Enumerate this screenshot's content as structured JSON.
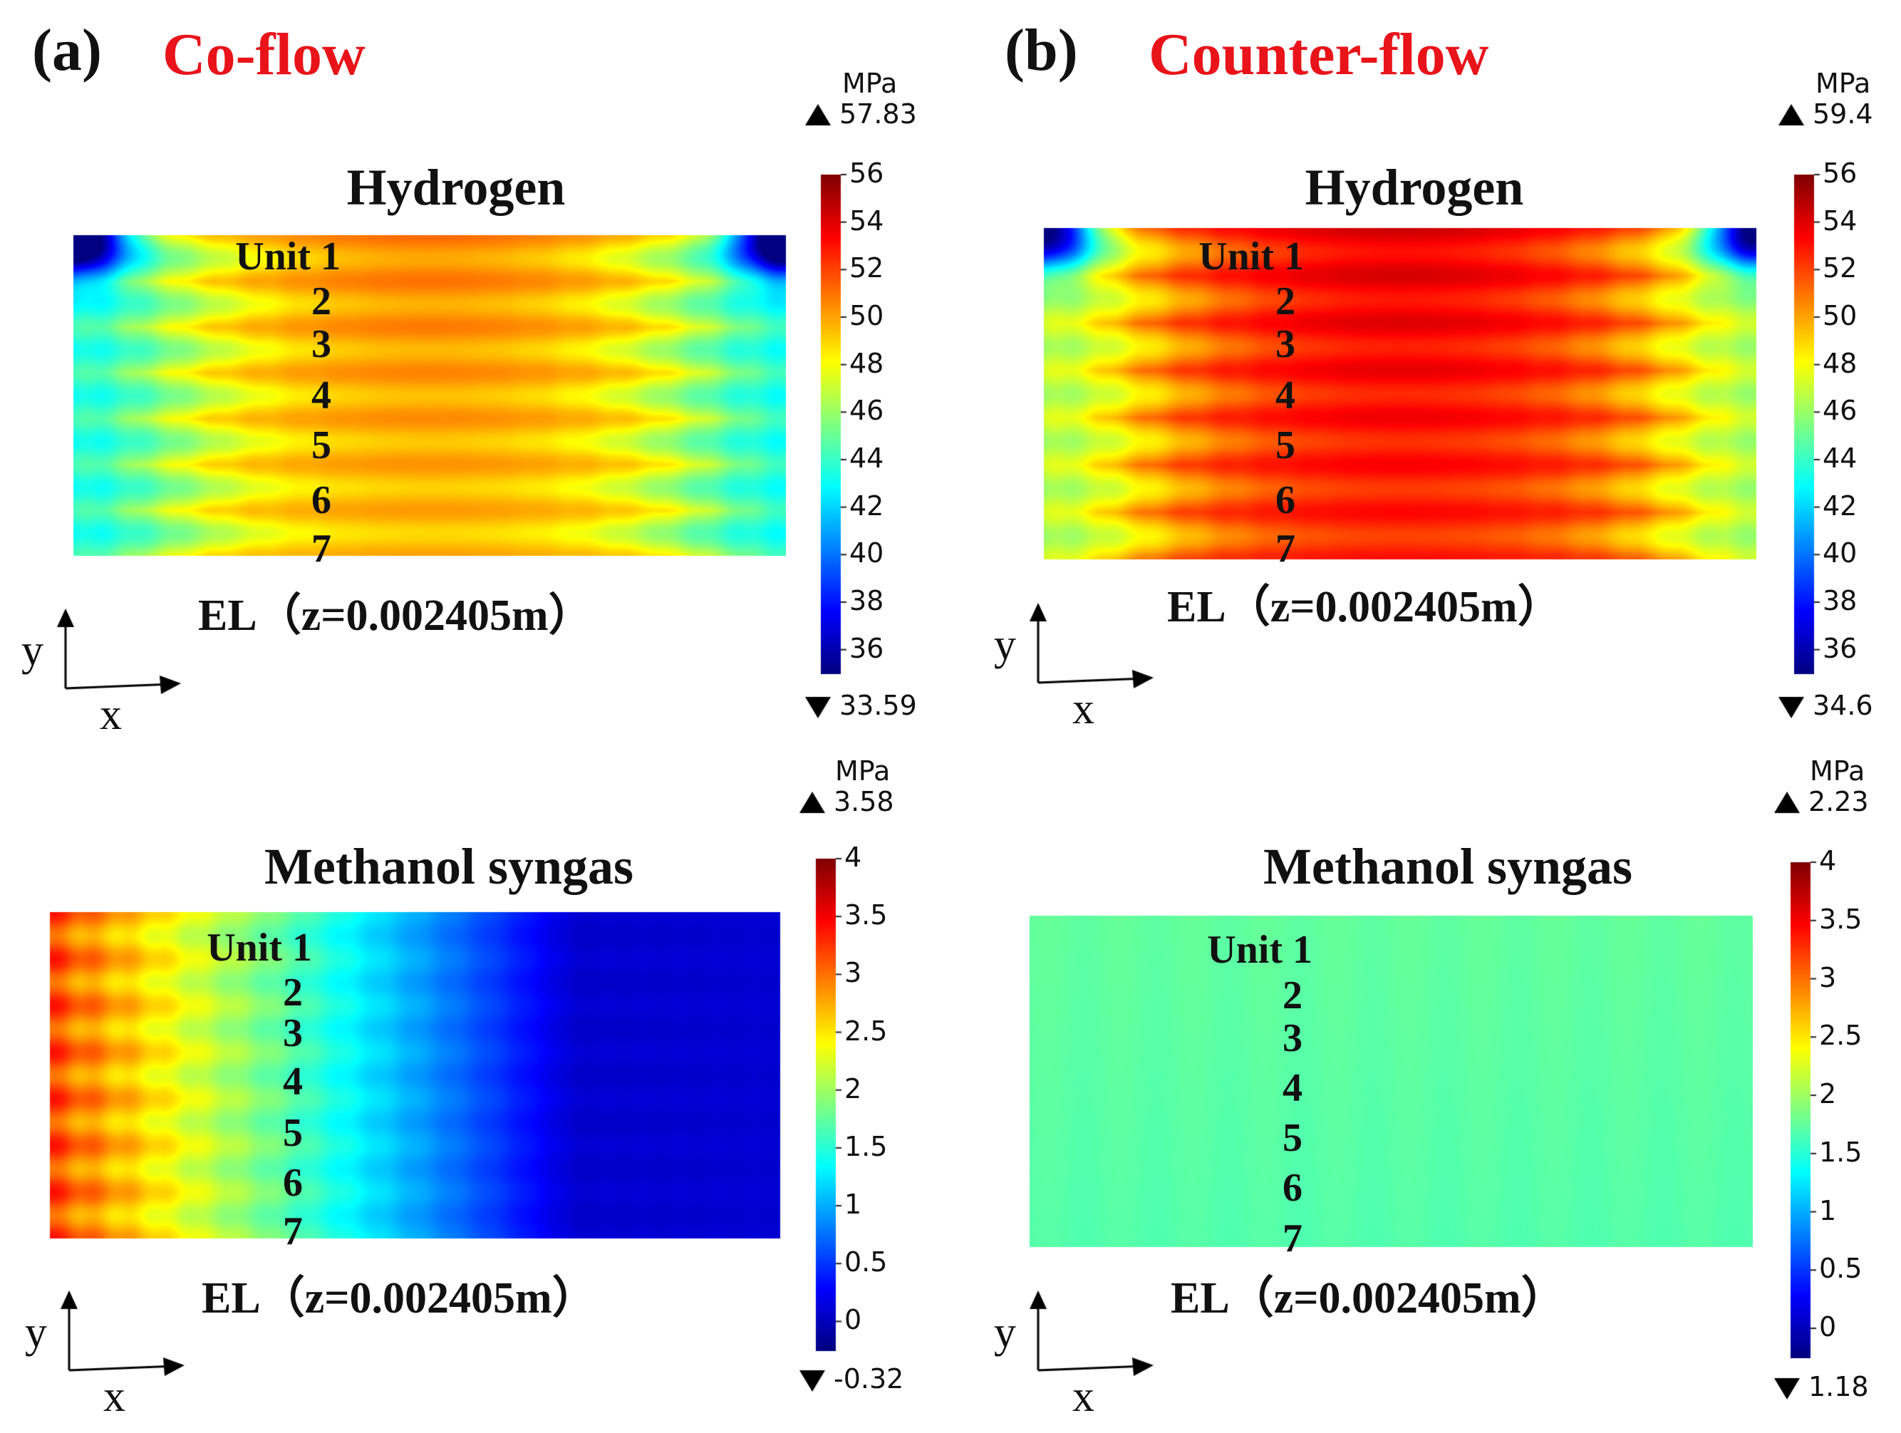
{
  "figure": {
    "panels": [
      {
        "label": "(a)",
        "title": "Co-flow"
      },
      {
        "label": "(b)",
        "title": "Counter-flow"
      }
    ],
    "axes": {
      "x": "x",
      "y": "y"
    }
  },
  "chart_data": [
    {
      "type": "heatmap",
      "panel": "a",
      "title": "Hydrogen",
      "plane": "EL（z=0.002405m）",
      "unit_labels": [
        "Unit 1",
        "2",
        "3",
        "4",
        "5",
        "6",
        "7"
      ],
      "colorbar": {
        "unit": "MPa",
        "max": "57.83",
        "min": "33.59",
        "ticks": [
          "56",
          "54",
          "52",
          "50",
          "48",
          "46",
          "44",
          "42",
          "40",
          "38",
          "36"
        ],
        "range": [
          35,
          56
        ]
      },
      "field_description": "pressure distribution; mostly 48-51 MPa, higher (~52) in center upper rows, low (~36-38) at top corners"
    },
    {
      "type": "heatmap",
      "panel": "b",
      "title": "Hydrogen",
      "plane": "EL（z=0.002405m）",
      "unit_labels": [
        "Unit 1",
        "2",
        "3",
        "4",
        "5",
        "6",
        "7"
      ],
      "colorbar": {
        "unit": "MPa",
        "max": "59.4",
        "min": "34.6",
        "ticks": [
          "56",
          "54",
          "52",
          "50",
          "48",
          "46",
          "44",
          "42",
          "40",
          "38",
          "36"
        ],
        "range": [
          35,
          56
        ]
      },
      "field_description": "pressure distribution; mostly 51-54 MPa, peak ~55 at top center, low (~36) at top corners"
    },
    {
      "type": "heatmap",
      "panel": "a",
      "title": "Methanol syngas",
      "plane": "EL（z=0.002405m）",
      "unit_labels": [
        "Unit 1",
        "2",
        "3",
        "4",
        "5",
        "6",
        "7"
      ],
      "colorbar": {
        "unit": "MPa",
        "max": "3.58",
        "min": "-0.32",
        "ticks": [
          "4",
          "3.5",
          "3",
          "2.5",
          "2",
          "1.5",
          "1",
          "0.5",
          "0"
        ],
        "range": [
          -0.25,
          4
        ]
      },
      "field_description": "high (~3.3) at left edge decreasing to ~0.2 at right"
    },
    {
      "type": "heatmap",
      "panel": "b",
      "title": "Methanol syngas",
      "plane": "EL（z=0.002405m）",
      "unit_labels": [
        "Unit 1",
        "2",
        "3",
        "4",
        "5",
        "6",
        "7"
      ],
      "colorbar": {
        "unit": "MPa",
        "max": "2.23",
        "min": "1.18",
        "ticks": [
          "4",
          "3.5",
          "3",
          "2.5",
          "2",
          "1.5",
          "1",
          "0.5",
          "0"
        ],
        "range": [
          -0.25,
          4
        ]
      },
      "field_description": "nearly uniform ~1.7-1.8"
    }
  ]
}
